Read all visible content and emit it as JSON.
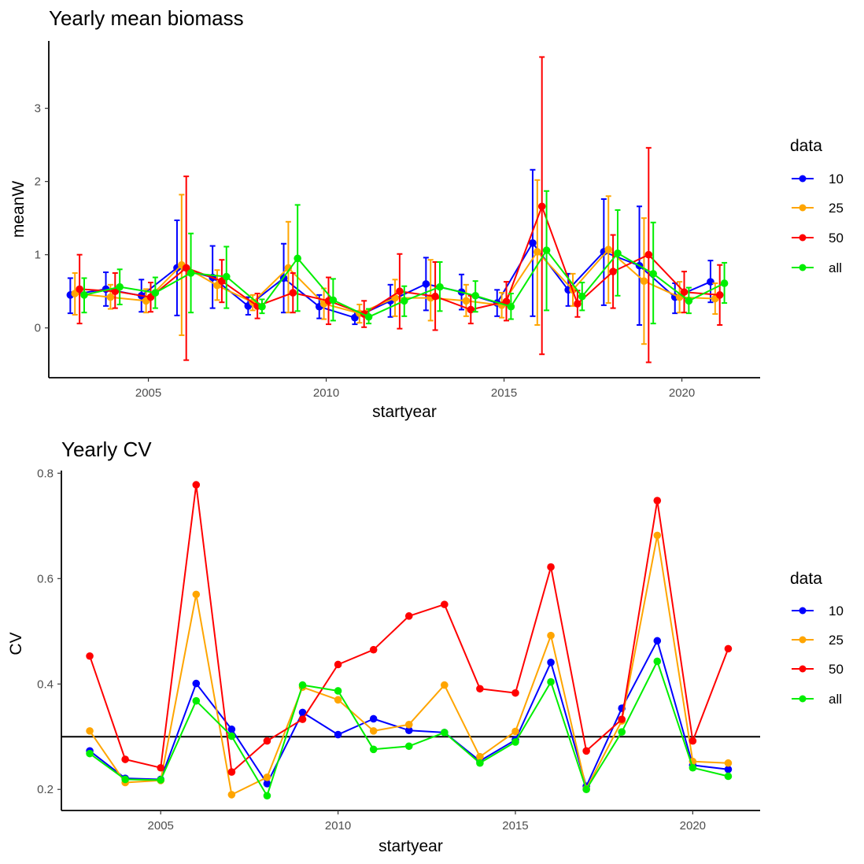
{
  "colors": {
    "10": "#0000ff",
    "25": "#ffa500",
    "50": "#ff0000",
    "all": "#00ee00",
    "axis": "#000000",
    "tick_text": "#4d4d4d"
  },
  "chart_data": [
    {
      "type": "line",
      "title": "Yearly mean biomass",
      "xlabel": "startyear",
      "ylabel": "meanW",
      "xlim": [
        2002.2,
        2022.2
      ],
      "ylim": [
        -0.68,
        3.92
      ],
      "x_ticks": [
        2005,
        2010,
        2015,
        2020
      ],
      "x_tick_labels": [
        "2005",
        "2010",
        "2015",
        "2020"
      ],
      "y_ticks": [
        0,
        1,
        2,
        3
      ],
      "y_tick_labels": [
        "0",
        "1",
        "2",
        "3"
      ],
      "grid": false,
      "error_bars": true,
      "legend": {
        "title": "data",
        "placement": "right",
        "entries": [
          "10",
          "25",
          "50",
          "all"
        ]
      },
      "x": [
        2003,
        2004,
        2005,
        2006,
        2007,
        2008,
        2009,
        2010,
        2011,
        2012,
        2013,
        2014,
        2015,
        2016,
        2017,
        2018,
        2019,
        2020,
        2021
      ],
      "series": [
        {
          "name": "10",
          "values": [
            0.45,
            0.53,
            0.44,
            0.82,
            0.69,
            0.3,
            0.68,
            0.29,
            0.14,
            0.37,
            0.6,
            0.49,
            0.34,
            1.16,
            0.52,
            1.04,
            0.85,
            0.42,
            0.63
          ],
          "lower": [
            0.2,
            0.3,
            0.22,
            0.17,
            0.27,
            0.18,
            0.21,
            0.13,
            0.05,
            0.15,
            0.24,
            0.25,
            0.16,
            0.16,
            0.3,
            0.31,
            0.04,
            0.2,
            0.35
          ],
          "upper": [
            0.68,
            0.76,
            0.66,
            1.47,
            1.12,
            0.42,
            1.15,
            0.45,
            0.23,
            0.59,
            0.96,
            0.73,
            0.52,
            2.16,
            0.74,
            1.76,
            1.66,
            0.61,
            0.92
          ]
        },
        {
          "name": "25",
          "values": [
            0.47,
            0.42,
            0.37,
            0.86,
            0.58,
            0.35,
            0.82,
            0.33,
            0.2,
            0.41,
            0.41,
            0.37,
            0.31,
            1.04,
            0.52,
            1.07,
            0.64,
            0.42,
            0.4
          ],
          "lower": [
            0.18,
            0.26,
            0.21,
            -0.1,
            0.38,
            0.24,
            0.21,
            0.12,
            0.07,
            0.16,
            0.1,
            0.16,
            0.14,
            0.04,
            0.3,
            0.34,
            -0.22,
            0.21,
            0.19
          ],
          "upper": [
            0.75,
            0.59,
            0.53,
            1.82,
            0.79,
            0.45,
            1.45,
            0.54,
            0.32,
            0.66,
            0.93,
            0.59,
            0.48,
            2.02,
            0.74,
            1.8,
            1.5,
            0.63,
            0.61
          ]
        },
        {
          "name": "50",
          "values": [
            0.53,
            0.5,
            0.42,
            0.82,
            0.64,
            0.3,
            0.48,
            0.37,
            0.19,
            0.5,
            0.43,
            0.25,
            0.36,
            1.66,
            0.33,
            0.77,
            1.0,
            0.49,
            0.45
          ],
          "lower": [
            0.06,
            0.27,
            0.22,
            -0.44,
            0.35,
            0.13,
            0.21,
            0.05,
            0.01,
            -0.01,
            -0.03,
            0.06,
            0.1,
            -0.36,
            0.15,
            0.27,
            -0.47,
            0.21,
            0.04
          ],
          "upper": [
            1.0,
            0.75,
            0.62,
            2.07,
            0.93,
            0.47,
            0.75,
            0.69,
            0.37,
            1.01,
            0.9,
            0.44,
            0.63,
            3.7,
            0.51,
            1.27,
            2.46,
            0.77,
            0.86
          ]
        },
        {
          "name": "all",
          "values": [
            0.45,
            0.56,
            0.48,
            0.75,
            0.7,
            0.29,
            0.95,
            0.38,
            0.15,
            0.37,
            0.56,
            0.44,
            0.29,
            1.06,
            0.43,
            1.02,
            0.74,
            0.37,
            0.61
          ],
          "lower": [
            0.21,
            0.32,
            0.27,
            0.21,
            0.27,
            0.2,
            0.23,
            0.1,
            0.06,
            0.16,
            0.23,
            0.22,
            0.12,
            0.24,
            0.24,
            0.44,
            0.06,
            0.2,
            0.34
          ],
          "upper": [
            0.68,
            0.8,
            0.69,
            1.29,
            1.11,
            0.39,
            1.68,
            0.67,
            0.26,
            0.57,
            0.9,
            0.64,
            0.47,
            1.87,
            0.62,
            1.61,
            1.44,
            0.55,
            0.89
          ]
        }
      ]
    },
    {
      "type": "line",
      "title": "Yearly CV",
      "xlabel": "startyear",
      "ylabel": "CV",
      "xlim": [
        2002.2,
        2021.9
      ],
      "ylim": [
        0.16,
        0.805
      ],
      "x_ticks": [
        2005,
        2010,
        2015,
        2020
      ],
      "x_tick_labels": [
        "2005",
        "2010",
        "2015",
        "2020"
      ],
      "y_ticks": [
        0.2,
        0.4,
        0.6,
        0.8
      ],
      "y_tick_labels": [
        "0.2",
        "0.4",
        "0.6",
        "0.8"
      ],
      "grid": false,
      "reference_line_y": 0.3,
      "legend": {
        "title": "data",
        "placement": "right",
        "entries": [
          "10",
          "25",
          "50",
          "all"
        ]
      },
      "x": [
        2003,
        2004,
        2005,
        2006,
        2007,
        2008,
        2009,
        2010,
        2011,
        2012,
        2013,
        2014,
        2015,
        2016,
        2017,
        2018,
        2019,
        2020,
        2021
      ],
      "series": [
        {
          "name": "10",
          "values": [
            0.273,
            0.221,
            0.219,
            0.401,
            0.314,
            0.211,
            0.346,
            0.304,
            0.334,
            0.312,
            0.308,
            0.254,
            0.294,
            0.441,
            0.206,
            0.354,
            0.482,
            0.246,
            0.238
          ]
        },
        {
          "name": "25",
          "values": [
            0.311,
            0.213,
            0.217,
            0.57,
            0.19,
            0.223,
            0.394,
            0.37,
            0.311,
            0.323,
            0.398,
            0.262,
            0.31,
            0.492,
            0.201,
            0.33,
            0.682,
            0.253,
            0.25
          ]
        },
        {
          "name": "50",
          "values": [
            0.453,
            0.257,
            0.241,
            0.778,
            0.233,
            0.292,
            0.333,
            0.437,
            0.465,
            0.529,
            0.551,
            0.391,
            0.383,
            0.622,
            0.273,
            0.333,
            0.748,
            0.292,
            0.467
          ]
        },
        {
          "name": "all",
          "values": [
            0.268,
            0.219,
            0.218,
            0.368,
            0.301,
            0.188,
            0.398,
            0.387,
            0.276,
            0.282,
            0.308,
            0.25,
            0.29,
            0.404,
            0.2,
            0.309,
            0.443,
            0.241,
            0.225
          ]
        }
      ]
    }
  ]
}
